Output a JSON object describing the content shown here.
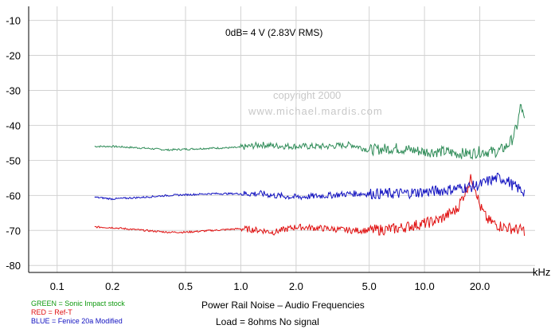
{
  "chart_data": {
    "type": "line",
    "title": "Power Rail Noise – Audio Frequencies",
    "subtitle": "Load = 8ohms  No signal",
    "annotation": "0dB= 4 V (2.83V RMS)",
    "watermark": [
      "copyright    2000",
      "www.michael.mardis.com"
    ],
    "xlabel": "kHz",
    "ylabel": "",
    "x_scale": "log",
    "xlim": [
      0.07,
      40
    ],
    "ylim": [
      -82,
      -6
    ],
    "grid": true,
    "x_ticks": [
      0.1,
      0.2,
      0.5,
      1.0,
      2.0,
      5.0,
      10.0,
      20.0
    ],
    "x_tick_labels": [
      "0.1",
      "0.2",
      "0.5",
      "1.0",
      "2.0",
      "5.0",
      "10.0",
      "20.0"
    ],
    "y_ticks": [
      -10,
      -20,
      -30,
      -40,
      -50,
      -60,
      -70,
      -80
    ],
    "y_tick_labels": [
      "-10",
      "-20",
      "-30",
      "-40",
      "-50",
      "-60",
      "-70",
      "-80"
    ],
    "legend_placement": "bottom-left",
    "legend": [
      {
        "label": "GREEN = Sonic Impact stock",
        "color": "#0f9a0f"
      },
      {
        "label": "RED = Ref-T",
        "color": "#e01010"
      },
      {
        "label": "BLUE = Fenice 20a Modified",
        "color": "#1010c0"
      }
    ],
    "series": [
      {
        "name": "GREEN = Sonic Impact stock",
        "color": "#2e8b57",
        "x": [
          0.16,
          0.2,
          0.3,
          0.4,
          0.5,
          0.7,
          1.0,
          1.3,
          1.5,
          2.0,
          3.0,
          4.0,
          5.0,
          7.0,
          10.0,
          13.0,
          15.0,
          18.0,
          20.0,
          25.0,
          28.0,
          30.0,
          32.0,
          33.5,
          35.0
        ],
        "y": [
          -46,
          -46,
          -46.5,
          -47,
          -46.8,
          -46.5,
          -46.3,
          -45.5,
          -45.8,
          -46,
          -46,
          -45.5,
          -47,
          -46.5,
          -47.5,
          -47.5,
          -48,
          -48,
          -47.5,
          -47.5,
          -46,
          -44,
          -40,
          -34,
          -39
        ]
      },
      {
        "name": "RED = Ref-T",
        "color": "#e01010",
        "x": [
          0.16,
          0.2,
          0.3,
          0.4,
          0.5,
          0.7,
          1.0,
          1.3,
          1.5,
          2.0,
          3.0,
          4.0,
          5.0,
          7.0,
          10.0,
          12.0,
          15.0,
          17.0,
          18.0,
          19.0,
          20.0,
          22.0,
          25.0,
          30.0,
          35.0
        ],
        "y": [
          -69,
          -69.2,
          -70,
          -70.5,
          -70.5,
          -70,
          -69.5,
          -70,
          -70.5,
          -69,
          -69.5,
          -70,
          -70,
          -69.5,
          -68,
          -67,
          -64,
          -58,
          -55,
          -58,
          -63,
          -67,
          -68.5,
          -69.5,
          -70
        ]
      },
      {
        "name": "BLUE = Fenice 20a Modified",
        "color": "#1010c0",
        "x": [
          0.16,
          0.2,
          0.3,
          0.4,
          0.5,
          0.7,
          1.0,
          1.3,
          1.5,
          2.0,
          3.0,
          4.0,
          5.0,
          7.0,
          10.0,
          13.0,
          15.0,
          18.0,
          20.0,
          22.0,
          25.0,
          28.0,
          30.0,
          35.0
        ],
        "y": [
          -60.5,
          -61,
          -60.5,
          -60,
          -59.8,
          -59.5,
          -59.5,
          -59.5,
          -60,
          -60.5,
          -60,
          -59.5,
          -59.5,
          -59.5,
          -59,
          -58.5,
          -58,
          -57.5,
          -57,
          -56,
          -55,
          -55.5,
          -57,
          -59
        ]
      }
    ]
  }
}
